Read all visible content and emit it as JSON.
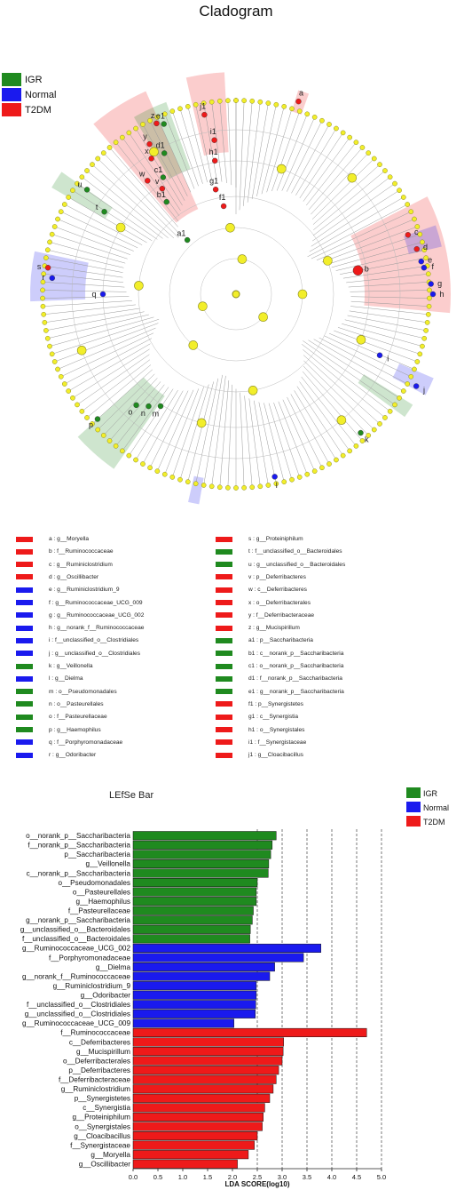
{
  "cladogram": {
    "title": "Cladogram",
    "legend": [
      {
        "label": "IGR",
        "color": "#1f8a1f"
      },
      {
        "label": "Normal",
        "color": "#1a1aee"
      },
      {
        "label": "T2DM",
        "color": "#ee1a1a"
      }
    ],
    "markers": [
      {
        "letter": "a",
        "group": "T2DM"
      },
      {
        "letter": "b",
        "group": "T2DM"
      },
      {
        "letter": "c",
        "group": "T2DM"
      },
      {
        "letter": "d",
        "group": "T2DM"
      },
      {
        "letter": "e",
        "group": "Normal"
      },
      {
        "letter": "f",
        "group": "Normal"
      },
      {
        "letter": "g",
        "group": "Normal"
      },
      {
        "letter": "h",
        "group": "Normal"
      },
      {
        "letter": "i",
        "group": "Normal"
      },
      {
        "letter": "j",
        "group": "Normal"
      },
      {
        "letter": "k",
        "group": "IGR"
      },
      {
        "letter": "l",
        "group": "Normal"
      },
      {
        "letter": "m",
        "group": "IGR"
      },
      {
        "letter": "n",
        "group": "IGR"
      },
      {
        "letter": "o",
        "group": "IGR"
      },
      {
        "letter": "p",
        "group": "IGR"
      },
      {
        "letter": "q",
        "group": "Normal"
      },
      {
        "letter": "r",
        "group": "Normal"
      },
      {
        "letter": "s",
        "group": "T2DM"
      },
      {
        "letter": "t",
        "group": "IGR"
      },
      {
        "letter": "u",
        "group": "IGR"
      },
      {
        "letter": "v",
        "group": "T2DM"
      },
      {
        "letter": "w",
        "group": "T2DM"
      },
      {
        "letter": "x",
        "group": "T2DM"
      },
      {
        "letter": "y",
        "group": "T2DM"
      },
      {
        "letter": "z",
        "group": "T2DM"
      },
      {
        "letter": "a1",
        "group": "IGR"
      },
      {
        "letter": "b1",
        "group": "IGR"
      },
      {
        "letter": "c1",
        "group": "IGR"
      },
      {
        "letter": "d1",
        "group": "IGR"
      },
      {
        "letter": "e1",
        "group": "IGR"
      },
      {
        "letter": "f1",
        "group": "T2DM"
      },
      {
        "letter": "g1",
        "group": "T2DM"
      },
      {
        "letter": "h1",
        "group": "T2DM"
      },
      {
        "letter": "i1",
        "group": "T2DM"
      },
      {
        "letter": "j1",
        "group": "T2DM"
      }
    ],
    "key_left": [
      {
        "text": "a : g__Moryella",
        "group": "T2DM"
      },
      {
        "text": "b : f__Ruminococcaceae",
        "group": "T2DM"
      },
      {
        "text": "c : g__Ruminiclostridium",
        "group": "T2DM"
      },
      {
        "text": "d : g__Oscillibacter",
        "group": "T2DM"
      },
      {
        "text": "e : g__Ruminiclostridium_9",
        "group": "Normal"
      },
      {
        "text": "f : g__Ruminococcaceae_UCG_009",
        "group": "Normal"
      },
      {
        "text": "g : g__Ruminococcaceae_UCG_002",
        "group": "Normal"
      },
      {
        "text": "h : g__norank_f__Ruminococcaceae",
        "group": "Normal"
      },
      {
        "text": "i : f__unclassified_o__Clostridiales",
        "group": "Normal"
      },
      {
        "text": "j : g__unclassified_o__Clostridiales",
        "group": "Normal"
      },
      {
        "text": "k : g__Veillonella",
        "group": "IGR"
      },
      {
        "text": "l : g__Dielma",
        "group": "Normal"
      },
      {
        "text": "m : o__Pseudomonadales",
        "group": "IGR"
      },
      {
        "text": "n : o__Pasteurellales",
        "group": "IGR"
      },
      {
        "text": "o : f__Pasteurellaceae",
        "group": "IGR"
      },
      {
        "text": "p : g__Haemophilus",
        "group": "IGR"
      },
      {
        "text": "q : f__Porphyromonadaceae",
        "group": "Normal"
      },
      {
        "text": "r : g__Odoribacter",
        "group": "Normal"
      }
    ],
    "key_right": [
      {
        "text": "s : g__Proteiniphilum",
        "group": "T2DM"
      },
      {
        "text": "t : f__unclassified_o__Bacteroidales",
        "group": "IGR"
      },
      {
        "text": "u : g__unclassified_o__Bacteroidales",
        "group": "IGR"
      },
      {
        "text": "v : p__Deferribacteres",
        "group": "T2DM"
      },
      {
        "text": "w : c__Deferribacteres",
        "group": "T2DM"
      },
      {
        "text": "x : o__Deferribacterales",
        "group": "T2DM"
      },
      {
        "text": "y : f__Deferribacteraceae",
        "group": "T2DM"
      },
      {
        "text": "z : g__Mucispirillum",
        "group": "T2DM"
      },
      {
        "text": "a1 : p__Saccharibacteria",
        "group": "IGR"
      },
      {
        "text": "b1 : c__norank_p__Saccharibacteria",
        "group": "IGR"
      },
      {
        "text": "c1 : o__norank_p__Saccharibacteria",
        "group": "IGR"
      },
      {
        "text": "d1 : f__norank_p__Saccharibacteria",
        "group": "IGR"
      },
      {
        "text": "e1 : g__norank_p__Saccharibacteria",
        "group": "IGR"
      },
      {
        "text": "f1 : p__Synergistetes",
        "group": "T2DM"
      },
      {
        "text": "g1 : c__Synergistia",
        "group": "T2DM"
      },
      {
        "text": "h1 : o__Synergistales",
        "group": "T2DM"
      },
      {
        "text": "i1 : f__Synergistaceae",
        "group": "T2DM"
      },
      {
        "text": "j1 : g__Cloacibacillus",
        "group": "T2DM"
      }
    ]
  },
  "chart_data": {
    "type": "bar",
    "orientation": "horizontal",
    "title": "LEfSe Bar",
    "xlabel": "LDA SCORE(log10)",
    "ylabel": "",
    "xlim": [
      0,
      5
    ],
    "xticks": [
      "0.0",
      "0.5",
      "1.0",
      "1.5",
      "2.0",
      "2.5",
      "3.0",
      "3.5",
      "4.0",
      "4.5",
      "5.0"
    ],
    "grid": "vertical dashed at 2.5–5.0",
    "legend_position": "top-right",
    "legend": [
      {
        "label": "IGR",
        "color": "#1f8a1f"
      },
      {
        "label": "Normal",
        "color": "#1a1aee"
      },
      {
        "label": "T2DM",
        "color": "#ee1a1a"
      }
    ],
    "bars": [
      {
        "label": "o__norank_p__Saccharibacteria",
        "value": 2.88,
        "group": "IGR"
      },
      {
        "label": "f__norank_p__Saccharibacteria",
        "value": 2.8,
        "group": "IGR"
      },
      {
        "label": "p__Saccharibacteria",
        "value": 2.77,
        "group": "IGR"
      },
      {
        "label": "g__Veillonella",
        "value": 2.73,
        "group": "IGR"
      },
      {
        "label": "c__norank_p__Saccharibacteria",
        "value": 2.72,
        "group": "IGR"
      },
      {
        "label": "o__Pseudomonadales",
        "value": 2.5,
        "group": "IGR"
      },
      {
        "label": "o__Pasteurellales",
        "value": 2.48,
        "group": "IGR"
      },
      {
        "label": "g__Haemophilus",
        "value": 2.48,
        "group": "IGR"
      },
      {
        "label": "f__Pasteurellaceae",
        "value": 2.42,
        "group": "IGR"
      },
      {
        "label": "g__norank_p__Saccharibacteria",
        "value": 2.4,
        "group": "IGR"
      },
      {
        "label": "g__unclassified_o__Bacteroidales",
        "value": 2.36,
        "group": "IGR"
      },
      {
        "label": "f__unclassified_o__Bacteroidales",
        "value": 2.35,
        "group": "IGR"
      },
      {
        "label": "g__Ruminococcaceae_UCG_002",
        "value": 3.78,
        "group": "Normal"
      },
      {
        "label": "f__Porphyromonadaceae",
        "value": 3.43,
        "group": "Normal"
      },
      {
        "label": "g__Dielma",
        "value": 2.85,
        "group": "Normal"
      },
      {
        "label": "g__norank_f__Ruminococcaceae",
        "value": 2.75,
        "group": "Normal"
      },
      {
        "label": "g__Ruminiclostridium_9",
        "value": 2.48,
        "group": "Normal"
      },
      {
        "label": "g__Odoribacter",
        "value": 2.48,
        "group": "Normal"
      },
      {
        "label": "f__unclassified_o__Clostridiales",
        "value": 2.47,
        "group": "Normal"
      },
      {
        "label": "g__unclassified_o__Clostridiales",
        "value": 2.46,
        "group": "Normal"
      },
      {
        "label": "g__Ruminococcaceae_UCG_009",
        "value": 2.03,
        "group": "Normal"
      },
      {
        "label": "f__Ruminococcaceae",
        "value": 4.7,
        "group": "T2DM"
      },
      {
        "label": "c__Deferribacteres",
        "value": 3.03,
        "group": "T2DM"
      },
      {
        "label": "g__Mucispirillum",
        "value": 3.02,
        "group": "T2DM"
      },
      {
        "label": "o__Deferribacterales",
        "value": 3.0,
        "group": "T2DM"
      },
      {
        "label": "p__Deferribacteres",
        "value": 2.93,
        "group": "T2DM"
      },
      {
        "label": "f__Deferribacteraceae",
        "value": 2.88,
        "group": "T2DM"
      },
      {
        "label": "g__Ruminiclostridium",
        "value": 2.82,
        "group": "T2DM"
      },
      {
        "label": "p__Synergistetes",
        "value": 2.75,
        "group": "T2DM"
      },
      {
        "label": "c__Synergistia",
        "value": 2.65,
        "group": "T2DM"
      },
      {
        "label": "g__Proteiniphilum",
        "value": 2.62,
        "group": "T2DM"
      },
      {
        "label": "o__Synergistales",
        "value": 2.6,
        "group": "T2DM"
      },
      {
        "label": "g__Cloacibacillus",
        "value": 2.5,
        "group": "T2DM"
      },
      {
        "label": "f__Synergistaceae",
        "value": 2.44,
        "group": "T2DM"
      },
      {
        "label": "g__Moryella",
        "value": 2.32,
        "group": "T2DM"
      },
      {
        "label": "g__Oscillibacter",
        "value": 2.1,
        "group": "T2DM"
      }
    ]
  }
}
